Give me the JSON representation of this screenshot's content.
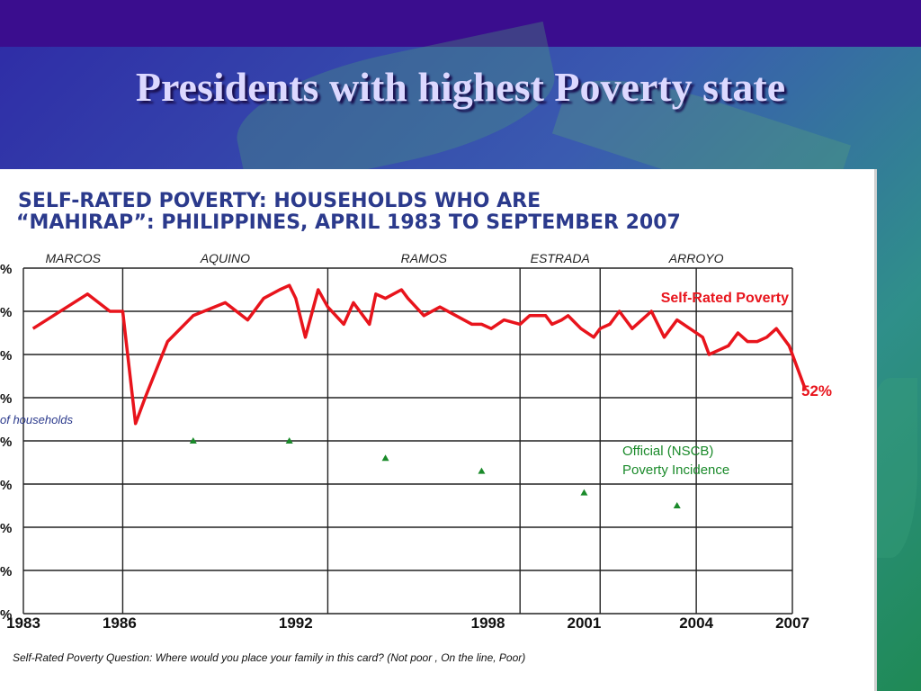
{
  "slide": {
    "title": "Presidents with highest Poverty state"
  },
  "colors": {
    "self_rated": "#e8141c",
    "official": "#1a8a2a",
    "heading": "#2b3a8c"
  },
  "chart_data": {
    "type": "line",
    "title_line1": "SELF-RATED POVERTY: HOUSEHOLDS WHO ARE",
    "title_line2": "“MAHIRAP”: PHILIPPINES, APRIL 1983 TO SEPTEMBER 2007",
    "ylabel_fragment": "of households",
    "footnote": "Self-Rated Poverty Question: Where would you place your family in this card? (Not poor , On the line, Poor)",
    "end_label": "52%",
    "y_tick_labels": [
      "%",
      "%",
      "%",
      "%",
      "%",
      "%",
      "%",
      "%",
      "%"
    ],
    "x_tick_labels": [
      "1983",
      "1986",
      "1992",
      "1998",
      "2001",
      "2004",
      "2007"
    ],
    "x_ticks": [
      1983.0,
      1986.0,
      1991.5,
      1997.5,
      2000.5,
      2004.0,
      2007.0
    ],
    "xlim": [
      1983.0,
      2007.0
    ],
    "ylim": [
      0,
      80
    ],
    "grid": true,
    "administrations": [
      {
        "name": "MARCOS",
        "start": 1983.0,
        "end": 1986.1
      },
      {
        "name": "AQUINO",
        "start": 1986.1,
        "end": 1992.5
      },
      {
        "name": "RAMOS",
        "start": 1992.5,
        "end": 1998.5
      },
      {
        "name": "ESTRADA",
        "start": 1998.5,
        "end": 2001.0
      },
      {
        "name": "ARROYO",
        "start": 2001.0,
        "end": 2007.0
      }
    ],
    "series": [
      {
        "name": "Self-Rated Poverty",
        "x": [
          1983.3,
          1985.0,
          1985.7,
          1986.1,
          1986.5,
          1986.8,
          1987.5,
          1988.3,
          1989.3,
          1990.0,
          1990.5,
          1991.0,
          1991.3,
          1991.5,
          1991.8,
          1992.2,
          1992.5,
          1993.0,
          1993.3,
          1993.8,
          1994.0,
          1994.3,
          1994.8,
          1995.0,
          1995.5,
          1996.0,
          1996.5,
          1997.0,
          1997.3,
          1997.6,
          1998.0,
          1998.5,
          1998.8,
          1999.3,
          1999.5,
          1999.8,
          2000.0,
          2000.4,
          2000.8,
          2001.0,
          2001.3,
          2001.6,
          2002.0,
          2002.3,
          2002.6,
          2003.0,
          2003.4,
          2003.8,
          2004.2,
          2004.4,
          2004.7,
          2005.0,
          2005.3,
          2005.6,
          2005.9,
          2006.2,
          2006.5,
          2006.9,
          2007.2,
          2007.4
        ],
        "y": [
          66,
          74,
          70,
          70,
          44,
          50,
          63,
          69,
          72,
          68,
          73,
          75,
          76,
          73,
          64,
          75,
          71,
          67,
          72,
          67,
          74,
          73,
          75,
          73,
          69,
          71,
          69,
          67,
          67,
          66,
          68,
          67,
          69,
          69,
          67,
          68,
          69,
          66,
          64,
          66,
          67,
          70,
          66,
          68,
          70,
          64,
          68,
          66,
          64,
          60,
          61,
          62,
          65,
          63,
          63,
          64,
          66,
          62,
          56,
          52
        ]
      },
      {
        "name": "Official (NSCB) Poverty Incidence",
        "x": [
          1988.3,
          1991.3,
          1994.3,
          1997.3,
          2000.5,
          2003.4
        ],
        "y": [
          40,
          40,
          36,
          33,
          28,
          25
        ]
      }
    ],
    "official_label_line1": "Official (NSCB)",
    "official_label_line2": "Poverty Incidence"
  }
}
